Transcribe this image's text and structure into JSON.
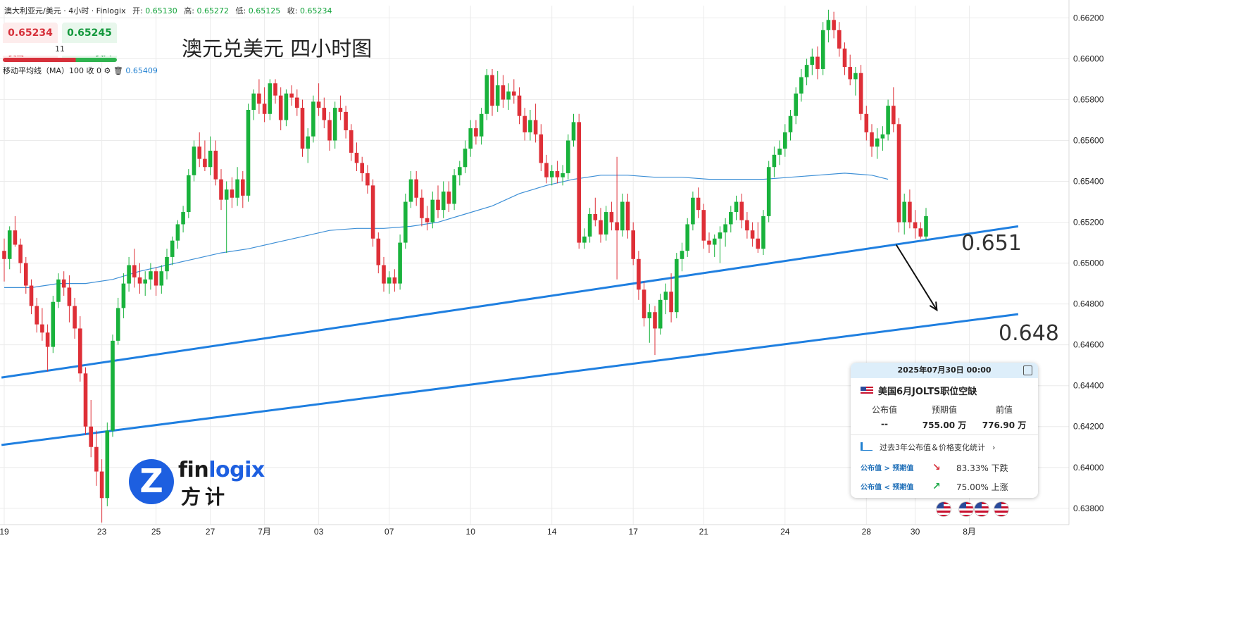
{
  "header": {
    "symbol": "澳大利亚元/美元 · 4小时 · Finlogix",
    "open_label": "开:",
    "open": "0.65130",
    "high_label": "高:",
    "high": "0.65272",
    "low_label": "低:",
    "low": "0.65125",
    "close_label": "收:",
    "close": "0.65234"
  },
  "trade_panel": {
    "sell_price": "0.65234",
    "buy_price": "0.65245",
    "sell_label": "卖出",
    "buy_label": "买入",
    "spread": "11"
  },
  "ma_legend": {
    "label": "移动平均线（MA）100 收 0",
    "value": "0.65409"
  },
  "annotations": {
    "label_upper": "0.651",
    "label_lower": "0.648"
  },
  "event_card": {
    "datetime": "2025年07月30日 00:00",
    "title": "美国6月JOLTS职位空缺",
    "actual_label": "公布值",
    "actual": "--",
    "forecast_label": "预期值",
    "forecast": "755.00 万",
    "previous_label": "前值",
    "previous": "776.90 万",
    "stats_label": "过去3年公布值＆价格变化统计",
    "row1_label": "公布值 > 预期值",
    "row1_value": "83.33% 下跌",
    "row2_label": "公布值 < 预期值",
    "row2_value": "75.00% 上涨"
  },
  "logo": {
    "text_a": "fin",
    "text_b": "logix",
    "text_cn": "方计"
  },
  "colors": {
    "up": "#19b23c",
    "down": "#de2f37",
    "ma": "#3d8fd6",
    "trend": "#1f7fe0",
    "grid": "#ebebeb"
  },
  "chart_data": {
    "type": "candlestick",
    "title": "澳元兑美元 四小时图",
    "y_ticks": [
      "0.66200",
      "0.66000",
      "0.65800",
      "0.65600",
      "0.65400",
      "0.65200",
      "0.65000",
      "0.64800",
      "0.64600",
      "0.64400",
      "0.64200",
      "0.64000",
      "0.63800"
    ],
    "ylim": [
      0.6372,
      0.6626
    ],
    "x_ticks": [
      {
        "label": "19",
        "x": 0
      },
      {
        "label": "23",
        "x": 18
      },
      {
        "label": "25",
        "x": 28
      },
      {
        "label": "27",
        "x": 38
      },
      {
        "label": "7月",
        "x": 48
      },
      {
        "label": "03",
        "x": 58
      },
      {
        "label": "07",
        "x": 71
      },
      {
        "label": "10",
        "x": 86
      },
      {
        "label": "14",
        "x": 101
      },
      {
        "label": "17",
        "x": 116
      },
      {
        "label": "21",
        "x": 129
      },
      {
        "label": "24",
        "x": 144
      },
      {
        "label": "28",
        "x": 159
      },
      {
        "label": "30",
        "x": 168
      },
      {
        "label": "8月",
        "x": 178
      }
    ],
    "candles": [
      [
        0.6506,
        0.6512,
        0.6491,
        0.6502
      ],
      [
        0.6502,
        0.6518,
        0.6497,
        0.6516
      ],
      [
        0.6516,
        0.6523,
        0.6508,
        0.6509
      ],
      [
        0.6509,
        0.6512,
        0.6495,
        0.65
      ],
      [
        0.65,
        0.6503,
        0.6485,
        0.6489
      ],
      [
        0.6489,
        0.6492,
        0.6475,
        0.6479
      ],
      [
        0.6479,
        0.6483,
        0.6466,
        0.647
      ],
      [
        0.647,
        0.6478,
        0.6462,
        0.6466
      ],
      [
        0.6466,
        0.647,
        0.6447,
        0.6459
      ],
      [
        0.6459,
        0.6484,
        0.6456,
        0.6481
      ],
      [
        0.6481,
        0.6495,
        0.6478,
        0.6492
      ],
      [
        0.6492,
        0.6496,
        0.6484,
        0.6488
      ],
      [
        0.6488,
        0.6494,
        0.6471,
        0.6479
      ],
      [
        0.6479,
        0.6483,
        0.6463,
        0.6468
      ],
      [
        0.6468,
        0.6474,
        0.6442,
        0.6446
      ],
      [
        0.6446,
        0.6449,
        0.6416,
        0.642
      ],
      [
        0.642,
        0.6433,
        0.6405,
        0.641
      ],
      [
        0.641,
        0.6418,
        0.6391,
        0.6398
      ],
      [
        0.6398,
        0.6404,
        0.6373,
        0.6385
      ],
      [
        0.6385,
        0.6422,
        0.6381,
        0.6418
      ],
      [
        0.6418,
        0.6465,
        0.6415,
        0.6462
      ],
      [
        0.6462,
        0.6483,
        0.646,
        0.6478
      ],
      [
        0.6478,
        0.6495,
        0.6473,
        0.649
      ],
      [
        0.649,
        0.6503,
        0.6486,
        0.6499
      ],
      [
        0.6499,
        0.6507,
        0.6488,
        0.6493
      ],
      [
        0.6493,
        0.65,
        0.6485,
        0.649
      ],
      [
        0.649,
        0.6496,
        0.6484,
        0.6492
      ],
      [
        0.6492,
        0.65,
        0.6487,
        0.6496
      ],
      [
        0.6496,
        0.6498,
        0.6484,
        0.6489
      ],
      [
        0.6489,
        0.6499,
        0.6485,
        0.6496
      ],
      [
        0.6496,
        0.6507,
        0.6492,
        0.6503
      ],
      [
        0.6503,
        0.6513,
        0.6499,
        0.6511
      ],
      [
        0.6511,
        0.6521,
        0.6507,
        0.6519
      ],
      [
        0.6519,
        0.6528,
        0.6515,
        0.6525
      ],
      [
        0.6525,
        0.6546,
        0.6522,
        0.6543
      ],
      [
        0.6543,
        0.656,
        0.654,
        0.6557
      ],
      [
        0.6557,
        0.6564,
        0.6547,
        0.6551
      ],
      [
        0.6551,
        0.656,
        0.6545,
        0.6547
      ],
      [
        0.6547,
        0.6562,
        0.6543,
        0.6555
      ],
      [
        0.6555,
        0.656,
        0.6538,
        0.6541
      ],
      [
        0.6541,
        0.6546,
        0.6526,
        0.6531
      ],
      [
        0.6531,
        0.654,
        0.6505,
        0.6536
      ],
      [
        0.6536,
        0.6542,
        0.6527,
        0.6532
      ],
      [
        0.6532,
        0.6547,
        0.6528,
        0.6541
      ],
      [
        0.6541,
        0.6545,
        0.6527,
        0.6533
      ],
      [
        0.6533,
        0.6578,
        0.653,
        0.6575
      ],
      [
        0.6575,
        0.6585,
        0.657,
        0.6583
      ],
      [
        0.6583,
        0.659,
        0.6573,
        0.6578
      ],
      [
        0.6578,
        0.6586,
        0.6569,
        0.6573
      ],
      [
        0.6573,
        0.659,
        0.657,
        0.6588
      ],
      [
        0.6588,
        0.659,
        0.6578,
        0.6582
      ],
      [
        0.6582,
        0.6586,
        0.6565,
        0.657
      ],
      [
        0.657,
        0.6585,
        0.6567,
        0.6583
      ],
      [
        0.6583,
        0.6587,
        0.6577,
        0.6581
      ],
      [
        0.6581,
        0.6585,
        0.6572,
        0.6576
      ],
      [
        0.6576,
        0.658,
        0.6552,
        0.6556
      ],
      [
        0.6556,
        0.6566,
        0.6549,
        0.6562
      ],
      [
        0.6562,
        0.6582,
        0.6559,
        0.6579
      ],
      [
        0.6579,
        0.6588,
        0.6572,
        0.6576
      ],
      [
        0.6576,
        0.6581,
        0.6566,
        0.657
      ],
      [
        0.657,
        0.6574,
        0.6555,
        0.656
      ],
      [
        0.656,
        0.6579,
        0.6556,
        0.6576
      ],
      [
        0.6576,
        0.6582,
        0.657,
        0.6574
      ],
      [
        0.6574,
        0.6577,
        0.6561,
        0.6565
      ],
      [
        0.6565,
        0.6568,
        0.655,
        0.6554
      ],
      [
        0.6554,
        0.6559,
        0.6545,
        0.6549
      ],
      [
        0.6549,
        0.6552,
        0.654,
        0.6544
      ],
      [
        0.6544,
        0.6548,
        0.6534,
        0.6538
      ],
      [
        0.6538,
        0.6541,
        0.6508,
        0.6512
      ],
      [
        0.6512,
        0.6515,
        0.6495,
        0.6499
      ],
      [
        0.6499,
        0.6503,
        0.6486,
        0.649
      ],
      [
        0.649,
        0.6496,
        0.6485,
        0.6493
      ],
      [
        0.6493,
        0.6497,
        0.6486,
        0.649
      ],
      [
        0.649,
        0.6514,
        0.6487,
        0.651
      ],
      [
        0.651,
        0.6534,
        0.6507,
        0.653
      ],
      [
        0.653,
        0.6545,
        0.6527,
        0.6541
      ],
      [
        0.6541,
        0.6545,
        0.6528,
        0.6532
      ],
      [
        0.6532,
        0.6536,
        0.6518,
        0.6522
      ],
      [
        0.6522,
        0.6528,
        0.6516,
        0.652
      ],
      [
        0.652,
        0.6535,
        0.6517,
        0.6531
      ],
      [
        0.6531,
        0.6538,
        0.6522,
        0.6526
      ],
      [
        0.6526,
        0.654,
        0.6522,
        0.6535
      ],
      [
        0.6535,
        0.654,
        0.6525,
        0.6529
      ],
      [
        0.6529,
        0.6546,
        0.6526,
        0.6543
      ],
      [
        0.6543,
        0.655,
        0.6538,
        0.6547
      ],
      [
        0.6547,
        0.656,
        0.6544,
        0.6556
      ],
      [
        0.6556,
        0.657,
        0.6552,
        0.6566
      ],
      [
        0.6566,
        0.657,
        0.6558,
        0.6562
      ],
      [
        0.6562,
        0.6576,
        0.6558,
        0.6573
      ],
      [
        0.6573,
        0.6595,
        0.657,
        0.6592
      ],
      [
        0.6592,
        0.6595,
        0.6572,
        0.6577
      ],
      [
        0.6577,
        0.6594,
        0.6574,
        0.6587
      ],
      [
        0.6587,
        0.6592,
        0.6576,
        0.658
      ],
      [
        0.658,
        0.6588,
        0.6575,
        0.6584
      ],
      [
        0.6584,
        0.659,
        0.6578,
        0.6582
      ],
      [
        0.6582,
        0.6586,
        0.6568,
        0.6572
      ],
      [
        0.6572,
        0.6576,
        0.656,
        0.6564
      ],
      [
        0.6564,
        0.6575,
        0.656,
        0.657
      ],
      [
        0.657,
        0.6578,
        0.6559,
        0.6563
      ],
      [
        0.6563,
        0.6568,
        0.6545,
        0.6549
      ],
      [
        0.6549,
        0.6553,
        0.6539,
        0.6542
      ],
      [
        0.6542,
        0.6548,
        0.6538,
        0.6545
      ],
      [
        0.6545,
        0.655,
        0.6539,
        0.6542
      ],
      [
        0.6542,
        0.6548,
        0.6538,
        0.6544
      ],
      [
        0.6544,
        0.6563,
        0.6541,
        0.656
      ],
      [
        0.656,
        0.6573,
        0.6557,
        0.6569
      ],
      [
        0.6569,
        0.6573,
        0.6507,
        0.651
      ],
      [
        0.651,
        0.6517,
        0.6507,
        0.6513
      ],
      [
        0.6513,
        0.6527,
        0.651,
        0.6524
      ],
      [
        0.6524,
        0.6532,
        0.6518,
        0.6521
      ],
      [
        0.6521,
        0.6527,
        0.651,
        0.6514
      ],
      [
        0.6514,
        0.6528,
        0.6511,
        0.6525
      ],
      [
        0.6525,
        0.653,
        0.6516,
        0.652
      ],
      [
        0.652,
        0.6552,
        0.6492,
        0.6516
      ],
      [
        0.6516,
        0.6534,
        0.6513,
        0.653
      ],
      [
        0.653,
        0.6534,
        0.6512,
        0.6516
      ],
      [
        0.6516,
        0.652,
        0.6499,
        0.6502
      ],
      [
        0.6502,
        0.6506,
        0.6482,
        0.6487
      ],
      [
        0.6487,
        0.6491,
        0.6469,
        0.6473
      ],
      [
        0.6473,
        0.648,
        0.6461,
        0.6476
      ],
      [
        0.6476,
        0.6479,
        0.6455,
        0.6468
      ],
      [
        0.6468,
        0.6485,
        0.6465,
        0.6482
      ],
      [
        0.6482,
        0.649,
        0.6475,
        0.6486
      ],
      [
        0.6486,
        0.6495,
        0.6471,
        0.6476
      ],
      [
        0.6476,
        0.6505,
        0.6473,
        0.6502
      ],
      [
        0.6502,
        0.651,
        0.6496,
        0.6506
      ],
      [
        0.6506,
        0.6522,
        0.6503,
        0.6519
      ],
      [
        0.6519,
        0.6535,
        0.6516,
        0.6532
      ],
      [
        0.6532,
        0.6537,
        0.6522,
        0.6526
      ],
      [
        0.6526,
        0.6529,
        0.6507,
        0.6511
      ],
      [
        0.6511,
        0.6515,
        0.6505,
        0.6509
      ],
      [
        0.6509,
        0.6514,
        0.6503,
        0.6512
      ],
      [
        0.6512,
        0.6518,
        0.65,
        0.6515
      ],
      [
        0.6515,
        0.6522,
        0.6508,
        0.6519
      ],
      [
        0.6519,
        0.6528,
        0.6515,
        0.6525
      ],
      [
        0.6525,
        0.6533,
        0.6521,
        0.653
      ],
      [
        0.653,
        0.6534,
        0.6517,
        0.6521
      ],
      [
        0.6521,
        0.6525,
        0.6512,
        0.6516
      ],
      [
        0.6516,
        0.652,
        0.6508,
        0.6512
      ],
      [
        0.6512,
        0.652,
        0.6505,
        0.6507
      ],
      [
        0.6507,
        0.6526,
        0.6504,
        0.6523
      ],
      [
        0.6523,
        0.655,
        0.652,
        0.6547
      ],
      [
        0.6547,
        0.6557,
        0.6542,
        0.6553
      ],
      [
        0.6553,
        0.656,
        0.6548,
        0.6556
      ],
      [
        0.6556,
        0.6568,
        0.6552,
        0.6564
      ],
      [
        0.6564,
        0.6575,
        0.656,
        0.6572
      ],
      [
        0.6572,
        0.6586,
        0.6568,
        0.6583
      ],
      [
        0.6583,
        0.6595,
        0.6579,
        0.6591
      ],
      [
        0.6591,
        0.66,
        0.6587,
        0.6597
      ],
      [
        0.6597,
        0.6605,
        0.6592,
        0.6601
      ],
      [
        0.6601,
        0.6606,
        0.659,
        0.6595
      ],
      [
        0.6595,
        0.6618,
        0.6592,
        0.6614
      ],
      [
        0.6614,
        0.6624,
        0.6608,
        0.6619
      ],
      [
        0.6619,
        0.6623,
        0.661,
        0.6614
      ],
      [
        0.6614,
        0.6618,
        0.6601,
        0.6605
      ],
      [
        0.6605,
        0.6608,
        0.6592,
        0.6596
      ],
      [
        0.6596,
        0.6602,
        0.6587,
        0.659
      ],
      [
        0.659,
        0.6596,
        0.6582,
        0.6593
      ],
      [
        0.6593,
        0.6597,
        0.657,
        0.6573
      ],
      [
        0.6573,
        0.6577,
        0.656,
        0.6564
      ],
      [
        0.6564,
        0.6568,
        0.6552,
        0.6557
      ],
      [
        0.6557,
        0.6566,
        0.6551,
        0.6561
      ],
      [
        0.6561,
        0.6567,
        0.6555,
        0.6563
      ],
      [
        0.6563,
        0.658,
        0.656,
        0.6577
      ],
      [
        0.6577,
        0.6586,
        0.6564,
        0.6568
      ],
      [
        0.6568,
        0.6571,
        0.6515,
        0.652
      ],
      [
        0.652,
        0.6534,
        0.6514,
        0.653
      ],
      [
        0.653,
        0.6536,
        0.6517,
        0.652
      ],
      [
        0.652,
        0.6526,
        0.6512,
        0.6517
      ],
      [
        0.6517,
        0.652,
        0.6512,
        0.6513
      ],
      [
        0.6513,
        0.6527,
        0.6511,
        0.6523
      ]
    ],
    "ma_series": [
      [
        0,
        0.6488
      ],
      [
        5,
        0.6488
      ],
      [
        10,
        0.649
      ],
      [
        15,
        0.649
      ],
      [
        20,
        0.6492
      ],
      [
        25,
        0.6496
      ],
      [
        30,
        0.6499
      ],
      [
        35,
        0.6502
      ],
      [
        40,
        0.6505
      ],
      [
        45,
        0.6507
      ],
      [
        50,
        0.651
      ],
      [
        55,
        0.6513
      ],
      [
        60,
        0.6516
      ],
      [
        65,
        0.6517
      ],
      [
        70,
        0.6517
      ],
      [
        75,
        0.6518
      ],
      [
        80,
        0.652
      ],
      [
        85,
        0.6524
      ],
      [
        90,
        0.6528
      ],
      [
        95,
        0.6534
      ],
      [
        100,
        0.6538
      ],
      [
        105,
        0.6541
      ],
      [
        110,
        0.6543
      ],
      [
        115,
        0.6543
      ],
      [
        120,
        0.6542
      ],
      [
        125,
        0.6542
      ],
      [
        130,
        0.6541
      ],
      [
        135,
        0.6541
      ],
      [
        140,
        0.6541
      ],
      [
        145,
        0.6542
      ],
      [
        150,
        0.6543
      ],
      [
        155,
        0.6544
      ],
      [
        160,
        0.6543
      ],
      [
        163,
        0.6541
      ]
    ],
    "trendlines": [
      {
        "x1": -0.5,
        "y1": 0.6444,
        "x2": 187,
        "y2": 0.6518
      },
      {
        "x1": -0.5,
        "y1": 0.6411,
        "x2": 187,
        "y2": 0.6475
      }
    ],
    "arrow": {
      "x1": 164.5,
      "y1": 0.6509,
      "x2": 172,
      "y2": 0.6477
    }
  }
}
